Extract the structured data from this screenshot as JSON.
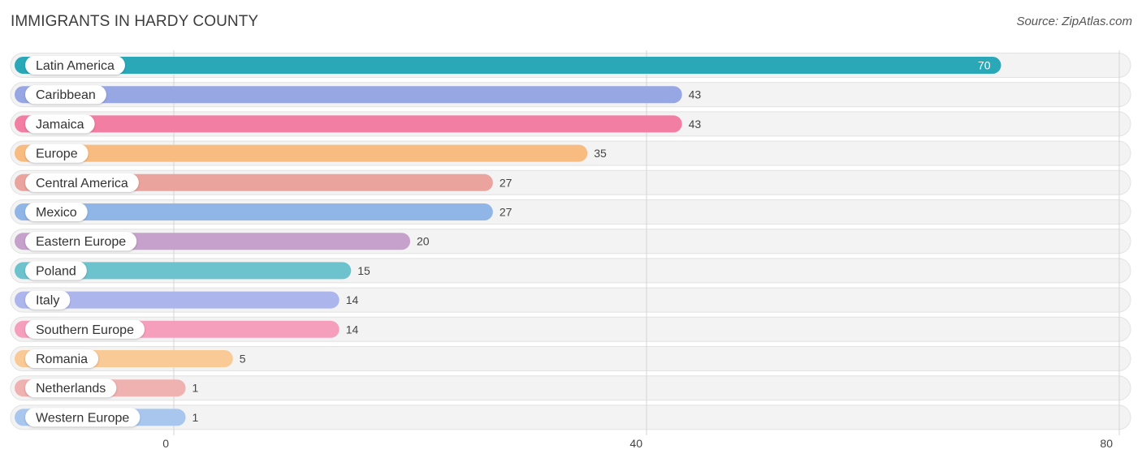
{
  "chart_data": {
    "type": "bar",
    "orientation": "horizontal",
    "title": "IMMIGRANTS IN HARDY COUNTY",
    "source": "Source: ZipAtlas.com",
    "categories": [
      "Latin America",
      "Caribbean",
      "Jamaica",
      "Europe",
      "Central America",
      "Mexico",
      "Eastern Europe",
      "Poland",
      "Italy",
      "Southern Europe",
      "Romania",
      "Netherlands",
      "Western Europe"
    ],
    "values": [
      70,
      43,
      43,
      35,
      27,
      27,
      20,
      15,
      14,
      14,
      5,
      1,
      1
    ],
    "colors": [
      "#2aa8b8",
      "#97a7e3",
      "#f27ea3",
      "#f9bc80",
      "#eba39d",
      "#90b6e8",
      "#c6a1cb",
      "#6cc3cd",
      "#adb6ec",
      "#f59fbc",
      "#f9c996",
      "#f0b1b1",
      "#a9c7ee"
    ],
    "xlim": [
      0,
      80
    ],
    "xticks": [
      0,
      40,
      80
    ],
    "xlabel": "",
    "ylabel": "",
    "grid": true
  }
}
